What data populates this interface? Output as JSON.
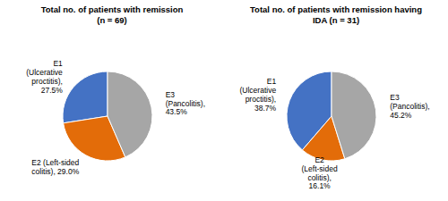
{
  "chart_data": [
    {
      "type": "pie",
      "title": "Total no. of patients with remission\n(n = 69)",
      "values": [
        27.5,
        29.0,
        43.5
      ],
      "value_labels": [
        "E1\n(Ulcerative\nproctitis),\n27.5%",
        "E2 (Left-sided\ncolitis), 29.0%",
        "E3\n(Pancolitis),\n43.5%"
      ],
      "colors": [
        "#4472C4",
        "#E36C09",
        "#A6A6A6"
      ]
    },
    {
      "type": "pie",
      "title": "Total no. of patients with remission having\nIDA (n = 31)",
      "values": [
        38.7,
        16.1,
        45.2
      ],
      "value_labels": [
        "E1\n(Ulcerative\nproctitis),\n38.7%",
        "E2\n(Left-sided\ncolitis),\n16.1%",
        "E3\n(Pancolitis),\n45.2%"
      ],
      "colors": [
        "#4472C4",
        "#E36C09",
        "#A6A6A6"
      ]
    }
  ]
}
